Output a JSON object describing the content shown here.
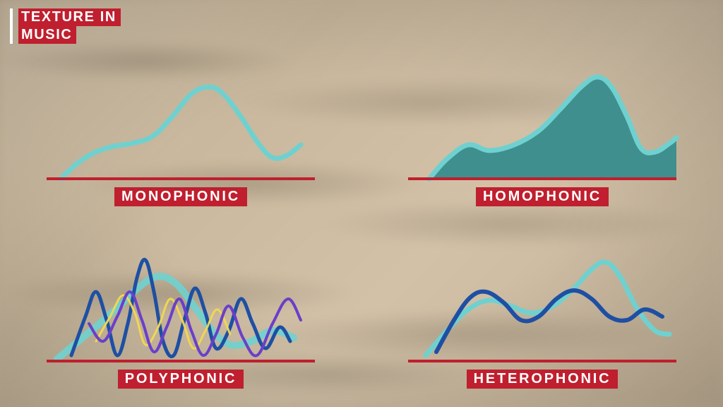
{
  "title": {
    "line1": "TEXTURE IN",
    "line2": "MUSIC",
    "bg": "#bf1f2e",
    "color": "#ffffff",
    "fontsize": 20,
    "bar_color": "#ffffff"
  },
  "accent_red": "#bf1f2e",
  "label_style": {
    "bg": "#bf1f2e",
    "color": "#ffffff",
    "fontsize": 20
  },
  "baseline": {
    "color": "#bf1f2e",
    "width": 4
  },
  "panels": {
    "monophonic": {
      "label": "MONOPHONIC",
      "type": "line",
      "lines": [
        {
          "color": "#6fd1cf",
          "width": 7,
          "opacity": 1,
          "points": [
            [
              20,
              158
            ],
            [
              45,
              135
            ],
            [
              70,
              120
            ],
            [
              95,
              112
            ],
            [
              120,
              108
            ],
            [
              150,
              98
            ],
            [
              178,
              70
            ],
            [
              205,
              38
            ],
            [
              230,
              28
            ],
            [
              250,
              38
            ],
            [
              275,
              70
            ],
            [
              300,
              108
            ],
            [
              320,
              128
            ],
            [
              340,
              125
            ],
            [
              360,
              110
            ]
          ]
        }
      ]
    },
    "homophonic": {
      "label": "HOMOPHONIC",
      "type": "area",
      "area": {
        "fill": "#3f8f8f",
        "stroke": "#6fd1cf",
        "stroke_width": 7,
        "points": [
          [
            30,
            158
          ],
          [
            55,
            130
          ],
          [
            85,
            110
          ],
          [
            115,
            118
          ],
          [
            150,
            110
          ],
          [
            185,
            90
          ],
          [
            215,
            60
          ],
          [
            245,
            28
          ],
          [
            268,
            14
          ],
          [
            288,
            28
          ],
          [
            310,
            70
          ],
          [
            330,
            115
          ],
          [
            350,
            120
          ],
          [
            370,
            108
          ],
          [
            380,
            100
          ],
          [
            380,
            158
          ]
        ]
      }
    },
    "polyphonic": {
      "label": "POLYPHONIC",
      "type": "line",
      "lines": [
        {
          "color": "#6fd1cf",
          "width": 10,
          "opacity": 0.9,
          "points": [
            [
              15,
              155
            ],
            [
              45,
              130
            ],
            [
              75,
              105
            ],
            [
              105,
              78
            ],
            [
              135,
              50
            ],
            [
              160,
              38
            ],
            [
              185,
              50
            ],
            [
              210,
              82
            ],
            [
              235,
              115
            ],
            [
              260,
              135
            ],
            [
              290,
              130
            ],
            [
              320,
              115
            ],
            [
              350,
              125
            ]
          ]
        },
        {
          "color": "#1e4fa3",
          "width": 5,
          "opacity": 1,
          "points": [
            [
              35,
              150
            ],
            [
              55,
              95
            ],
            [
              70,
              60
            ],
            [
              85,
              100
            ],
            [
              100,
              150
            ],
            [
              115,
              105
            ],
            [
              128,
              40
            ],
            [
              140,
              15
            ],
            [
              152,
              60
            ],
            [
              165,
              130
            ],
            [
              180,
              150
            ],
            [
              195,
              100
            ],
            [
              210,
              55
            ],
            [
              225,
              90
            ],
            [
              240,
              140
            ],
            [
              258,
              115
            ],
            [
              275,
              70
            ],
            [
              292,
              105
            ],
            [
              310,
              140
            ],
            [
              330,
              110
            ],
            [
              345,
              130
            ]
          ]
        },
        {
          "color": "#f2d94e",
          "width": 3,
          "opacity": 0.95,
          "points": [
            [
              70,
              130
            ],
            [
              90,
              95
            ],
            [
              108,
              65
            ],
            [
              125,
              90
            ],
            [
              140,
              135
            ],
            [
              158,
              110
            ],
            [
              175,
              70
            ],
            [
              192,
              100
            ],
            [
              208,
              140
            ],
            [
              225,
              115
            ],
            [
              242,
              85
            ],
            [
              260,
              120
            ]
          ]
        },
        {
          "color": "#6a3fc9",
          "width": 4,
          "opacity": 1,
          "points": [
            [
              60,
              105
            ],
            [
              80,
              130
            ],
            [
              100,
              95
            ],
            [
              118,
              60
            ],
            [
              135,
              100
            ],
            [
              152,
              145
            ],
            [
              170,
              110
            ],
            [
              188,
              70
            ],
            [
              205,
              115
            ],
            [
              222,
              150
            ],
            [
              240,
              120
            ],
            [
              258,
              80
            ],
            [
              278,
              125
            ],
            [
              298,
              150
            ],
            [
              320,
              105
            ],
            [
              342,
              70
            ],
            [
              360,
              100
            ]
          ]
        }
      ]
    },
    "heterophonic": {
      "label": "HETEROPHONIC",
      "type": "line",
      "lines": [
        {
          "color": "#6fd1cf",
          "width": 7,
          "opacity": 1,
          "points": [
            [
              25,
              150
            ],
            [
              55,
              115
            ],
            [
              85,
              85
            ],
            [
              115,
              72
            ],
            [
              145,
              80
            ],
            [
              175,
              90
            ],
            [
              205,
              80
            ],
            [
              235,
              55
            ],
            [
              260,
              28
            ],
            [
              280,
              18
            ],
            [
              300,
              38
            ],
            [
              325,
              85
            ],
            [
              350,
              115
            ],
            [
              370,
              120
            ]
          ]
        },
        {
          "color": "#1e4fa3",
          "width": 6,
          "opacity": 1,
          "points": [
            [
              40,
              145
            ],
            [
              65,
              100
            ],
            [
              88,
              68
            ],
            [
              110,
              60
            ],
            [
              135,
              75
            ],
            [
              160,
              100
            ],
            [
              185,
              95
            ],
            [
              210,
              70
            ],
            [
              235,
              58
            ],
            [
              260,
              70
            ],
            [
              285,
              95
            ],
            [
              310,
              100
            ],
            [
              335,
              85
            ],
            [
              360,
              95
            ]
          ]
        }
      ]
    }
  }
}
